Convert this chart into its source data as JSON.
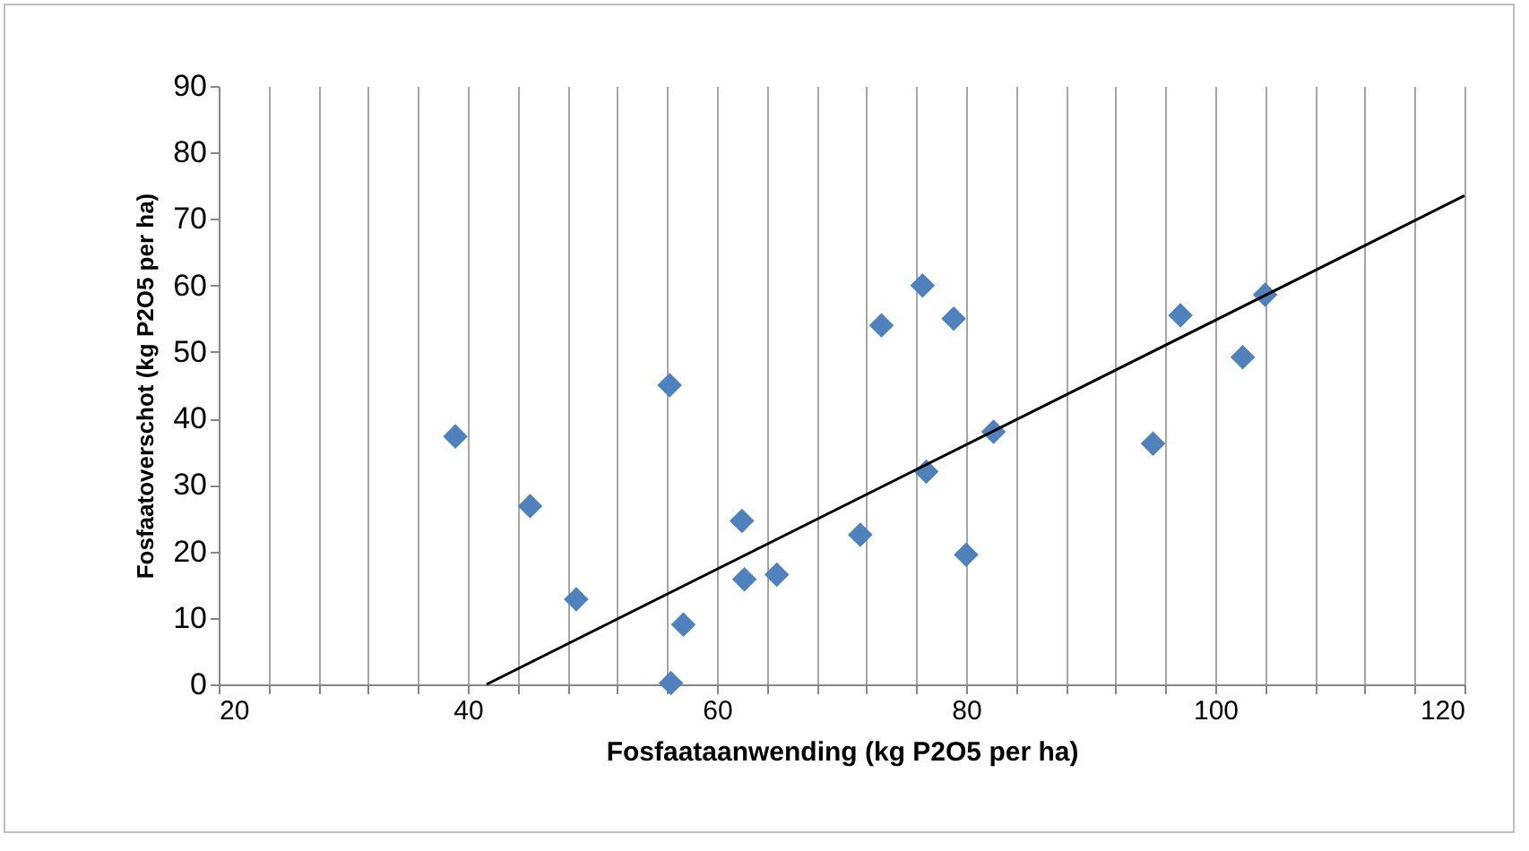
{
  "chart_data": {
    "type": "scatter",
    "xlabel": "Fosfaataanwending (kg P2O5 per ha)",
    "ylabel": "Fosfaatoverschot (kg P2O5 per ha)",
    "xlim": [
      20,
      120
    ],
    "ylim": [
      0,
      90
    ],
    "xticks": [
      20,
      {
        "value": 24,
        "label": null
      },
      {
        "value": 28,
        "label": null
      },
      {
        "value": 32,
        "label": null
      },
      {
        "value": 36,
        "label": null
      },
      40,
      {
        "value": 44,
        "label": null
      },
      {
        "value": 48,
        "label": null
      },
      {
        "value": 52,
        "label": null
      },
      {
        "value": 56,
        "label": null
      },
      60,
      {
        "value": 64,
        "label": null
      },
      {
        "value": 68,
        "label": null
      },
      {
        "value": 72,
        "label": null
      },
      {
        "value": 76,
        "label": null
      },
      80,
      {
        "value": 84,
        "label": null
      },
      {
        "value": 88,
        "label": null
      },
      {
        "value": 92,
        "label": null
      },
      {
        "value": 96,
        "label": null
      },
      100,
      {
        "value": 104,
        "label": null
      },
      {
        "value": 108,
        "label": null
      },
      {
        "value": 112,
        "label": null
      },
      {
        "value": 116,
        "label": null
      },
      120
    ],
    "yticks": [
      0,
      10,
      20,
      30,
      40,
      50,
      60,
      70,
      80,
      90
    ],
    "grid": "x",
    "series": [
      {
        "marker": "diamond",
        "color": "#4f81bd",
        "x": [
          39,
          45,
          48.7,
          56.2,
          56.3,
          57.3,
          62,
          62.2,
          64.8,
          71.5,
          73.2,
          76.5,
          76.8,
          79,
          80,
          82.2,
          95,
          97.2,
          102.2,
          104
        ],
        "values": [
          37.3,
          26.8,
          12.8,
          45,
          0.2,
          9,
          24.6,
          15.8,
          16.5,
          22.5,
          54,
          60,
          32,
          55,
          19.5,
          38,
          36.2,
          55.5,
          49.2,
          58.6
        ]
      },
      {
        "type": "line",
        "color": "#000000",
        "x": [
          41.5,
          120
        ],
        "values": [
          0,
          73.5
        ]
      }
    ]
  }
}
